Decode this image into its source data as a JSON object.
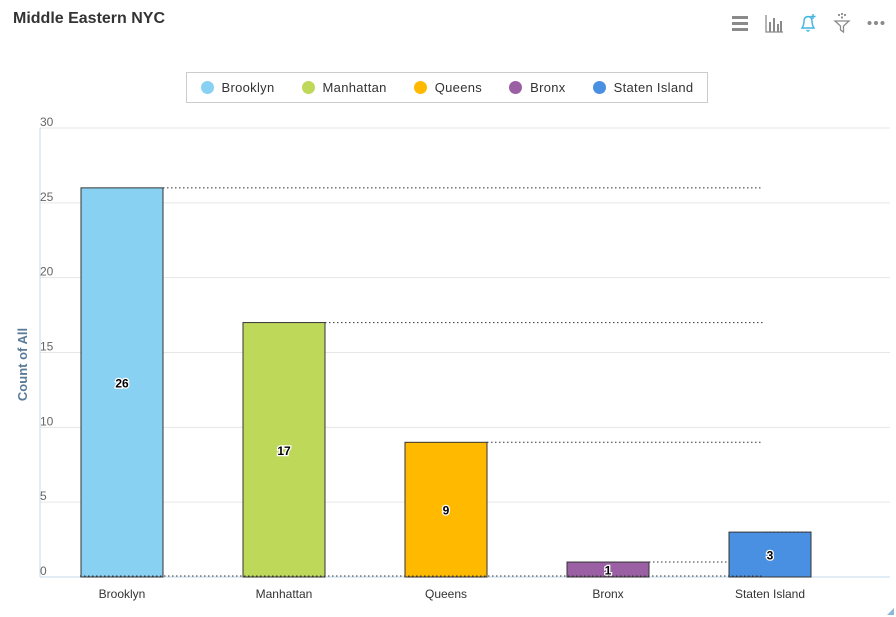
{
  "panel": {
    "title": "Middle Eastern NYC"
  },
  "toolbar": {
    "items": [
      {
        "icon": "menu-icon"
      },
      {
        "icon": "bar-chart-icon"
      },
      {
        "icon": "bell-plus-icon"
      },
      {
        "icon": "filter-icon"
      },
      {
        "icon": "more-icon"
      }
    ]
  },
  "legend": {
    "items": [
      {
        "label": "Brooklyn",
        "color": "#89d1f3"
      },
      {
        "label": "Manhattan",
        "color": "#bed85a"
      },
      {
        "label": "Queens",
        "color": "#ffba00"
      },
      {
        "label": "Bronx",
        "color": "#9b5fa4"
      },
      {
        "label": "Staten Island",
        "color": "#4a90e2"
      }
    ]
  },
  "chart_data": {
    "type": "bar",
    "categories": [
      "Brooklyn",
      "Manhattan",
      "Queens",
      "Bronx",
      "Staten Island"
    ],
    "values": [
      26,
      17,
      9,
      1,
      3
    ],
    "colors": [
      "#89d1f3",
      "#bed85a",
      "#ffba00",
      "#9b5fa4",
      "#4a90e2"
    ],
    "ylabel": "Count of All",
    "xlabel": "",
    "ylim": [
      0,
      30
    ],
    "yticks": [
      0,
      5,
      10,
      15,
      20,
      25,
      30
    ],
    "data_labels": [
      "26",
      "17",
      "9",
      "1",
      "3"
    ],
    "grid": true,
    "legend_position": "top"
  }
}
